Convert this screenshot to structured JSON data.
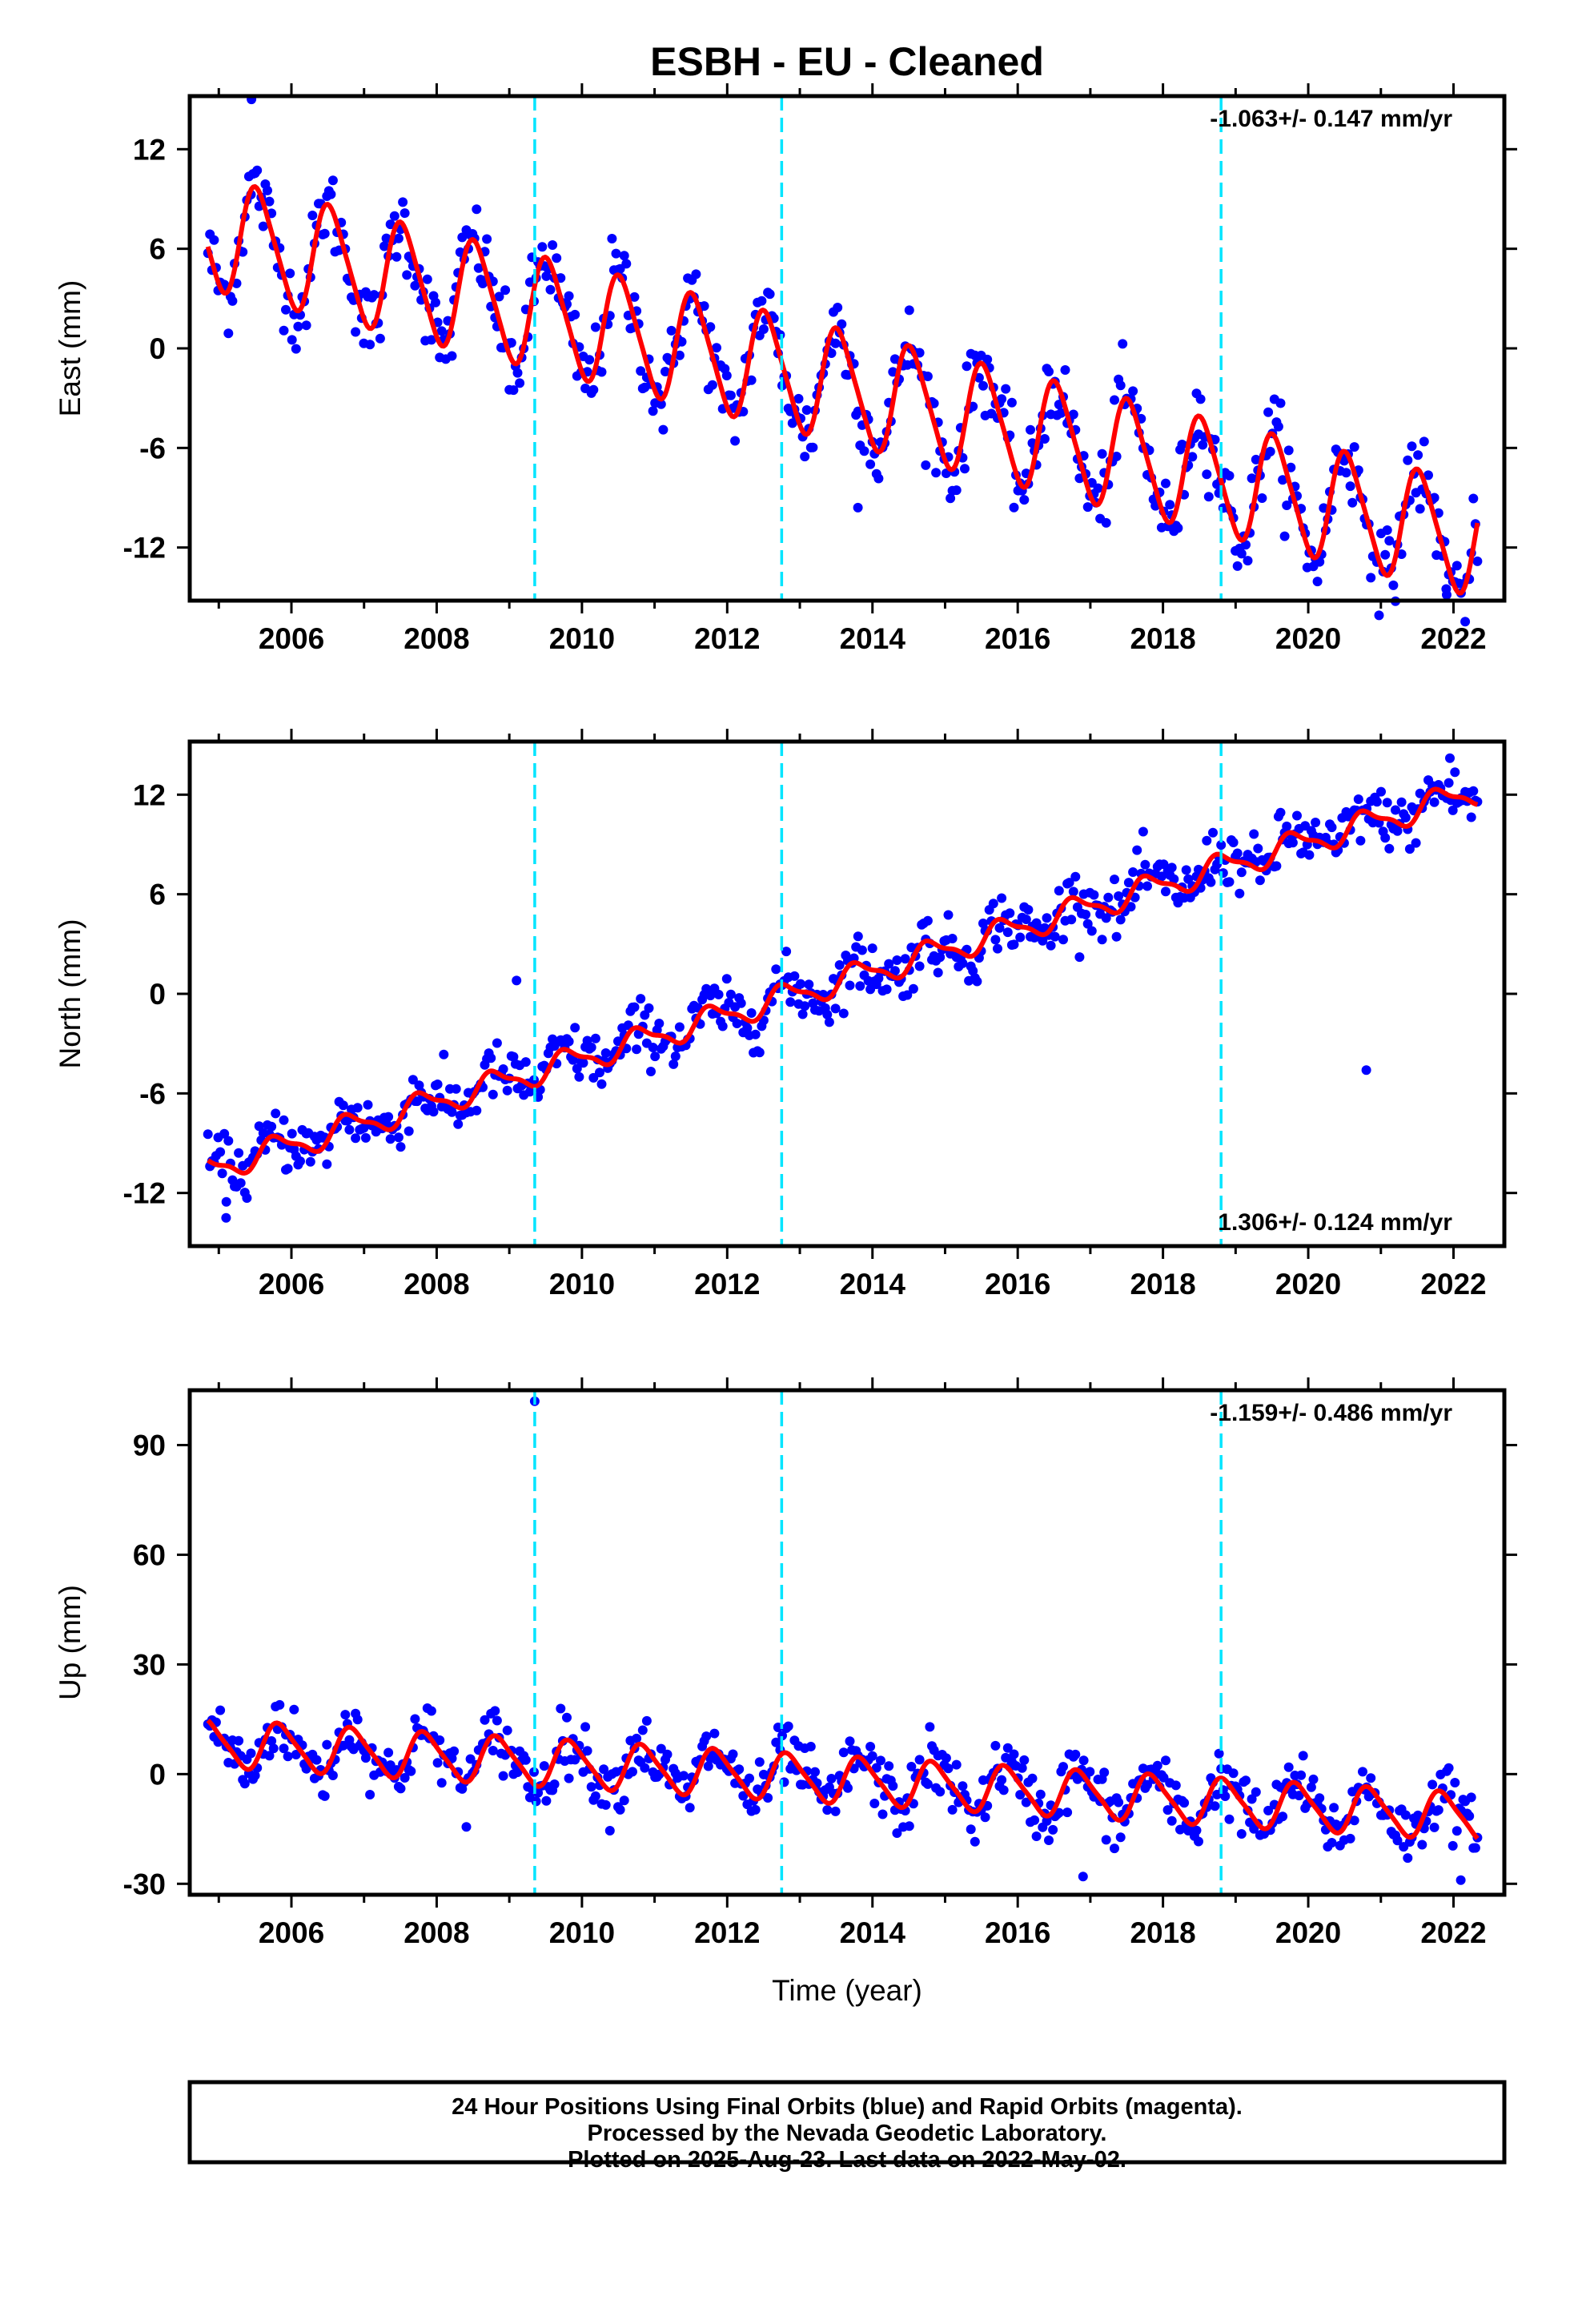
{
  "title": "ESBH  - EU - Cleaned",
  "footer": {
    "lines": [
      "24 Hour Positions Using Final Orbits (blue) and Rapid Orbits (magenta).",
      "Processed by the Nevada Geodetic Laboratory.",
      "Plotted on 2025-Aug-23. Last data on 2022-May-02."
    ]
  },
  "colors": {
    "points": "#0000ff",
    "model": "#ff0000",
    "offsets": "#00e5ff",
    "frame": "#000000"
  },
  "chart_data": [
    {
      "type": "scatter",
      "ylabel": "East (mm)",
      "xlabel": "",
      "xlim": [
        2004.6,
        2022.7
      ],
      "ylim": [
        -15.2,
        15.2
      ],
      "x_ticks": [
        "2006",
        "2008",
        "2010",
        "2012",
        "2014",
        "2016",
        "2018",
        "2020",
        "2022"
      ],
      "y_ticks": [
        "12",
        "6",
        "0",
        "-6",
        "-12"
      ],
      "rate_label": "-1.063+/- 0.147 mm/yr",
      "rate_position": "top-right",
      "offsets": [
        2009.35,
        2012.75,
        2018.8
      ],
      "grid": false,
      "data_start": 2004.85,
      "data_end": 2022.33,
      "model": {
        "reference_epoch": 2004.85,
        "start_value": 7.0,
        "trend": -1.063,
        "annual_amplitude": 3.3,
        "annual_phase": 0.29,
        "semiannual_amplitude": 0.5,
        "step_offsets": [
          0,
          0,
          0
        ]
      },
      "scatter_spread": 1.25,
      "outliers": [
        [
          2005.45,
          15.0
        ],
        [
          2009.0,
          -2.5
        ],
        [
          2013.8,
          -9.6
        ],
        [
          2021.9,
          -14.5
        ]
      ]
    },
    {
      "type": "scatter",
      "ylabel": "North (mm)",
      "xlabel": "",
      "xlim": [
        2004.6,
        2022.7
      ],
      "ylim": [
        -15.2,
        15.2
      ],
      "x_ticks": [
        "2006",
        "2008",
        "2010",
        "2012",
        "2014",
        "2016",
        "2018",
        "2020",
        "2022"
      ],
      "y_ticks": [
        "12",
        "6",
        "0",
        "-6",
        "-12"
      ],
      "rate_label": "1.306+/- 0.124 mm/yr",
      "rate_position": "bottom-right",
      "offsets": [
        2009.35,
        2012.75,
        2018.8
      ],
      "grid": false,
      "data_start": 2004.85,
      "data_end": 2022.33,
      "model": {
        "reference_epoch": 2004.85,
        "start_value": -10.6,
        "trend": 1.306,
        "annual_amplitude": 0.75,
        "annual_phase": 0.55,
        "semiannual_amplitude": 0.25,
        "step_offsets": [
          0,
          0,
          0
        ]
      },
      "scatter_spread": 0.85,
      "outliers": [
        [
          2005.1,
          -13.5
        ],
        [
          2009.1,
          0.8
        ],
        [
          2021.95,
          14.2
        ],
        [
          2020.8,
          -4.6
        ]
      ]
    },
    {
      "type": "scatter",
      "ylabel": "Up (mm)",
      "xlabel": "Time (year)",
      "xlim": [
        2004.6,
        2022.7
      ],
      "ylim": [
        -33,
        105
      ],
      "x_ticks": [
        "2006",
        "2008",
        "2010",
        "2012",
        "2014",
        "2016",
        "2018",
        "2020",
        "2022"
      ],
      "y_ticks": [
        "90",
        "60",
        "30",
        "0",
        "-30"
      ],
      "rate_label": "-1.159+/- 0.486 mm/yr",
      "rate_position": "top-right",
      "offsets": [
        2009.35,
        2012.75,
        2018.8
      ],
      "grid": false,
      "data_start": 2004.85,
      "data_end": 2022.33,
      "model": {
        "reference_epoch": 2004.85,
        "start_value": 8.5,
        "trend": -1.159,
        "annual_amplitude": 6.2,
        "annual_phase": 0.6,
        "semiannual_amplitude": 1.2,
        "step_offsets": [
          0,
          0,
          0
        ]
      },
      "scatter_spread": 4.2,
      "outliers": [
        [
          2009.35,
          102.0
        ],
        [
          2016.9,
          -28.0
        ],
        [
          2022.1,
          -29.0
        ]
      ]
    }
  ]
}
